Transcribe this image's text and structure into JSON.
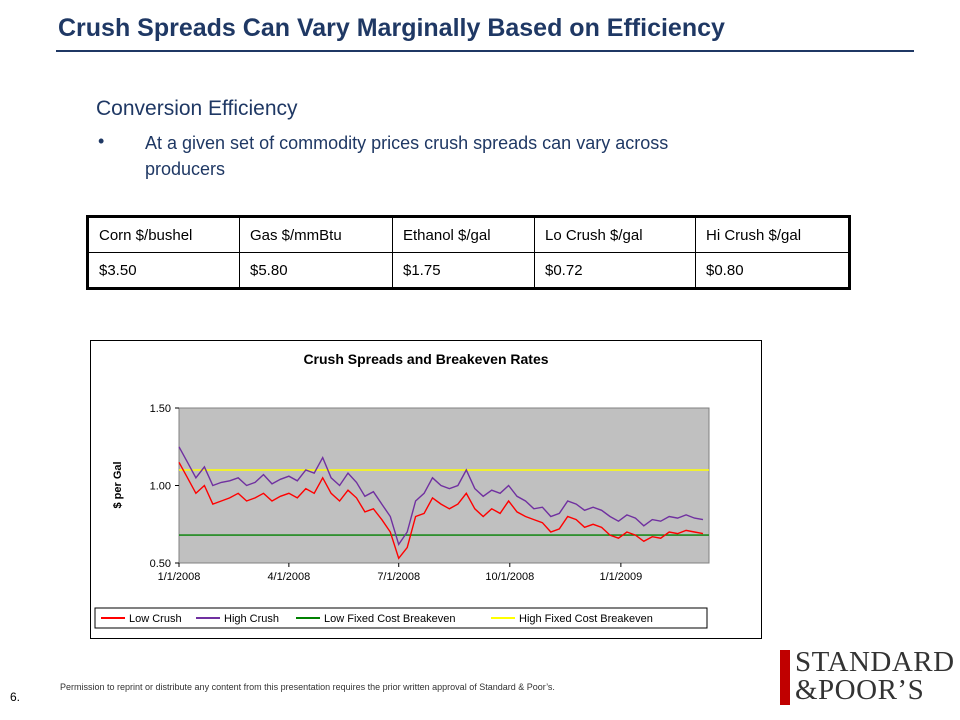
{
  "header": {
    "title": "Crush Spreads Can Vary Marginally Based on Efficiency"
  },
  "content": {
    "subheading": "Conversion Efficiency",
    "bullet": "At a given set of commodity prices crush spreads can vary across producers"
  },
  "price_table": {
    "headers": [
      "Corn $/bushel",
      "Gas $/mmBtu",
      "Ethanol $/gal",
      "Lo Crush $/gal",
      "Hi Crush $/gal"
    ],
    "row": [
      "$3.50",
      "$5.80",
      "$1.75",
      "$0.72",
      "$0.80"
    ]
  },
  "chart_data": {
    "type": "line",
    "title": "Crush Spreads and Breakeven Rates",
    "ylabel": "$ per Gal",
    "xlabel": "",
    "ylim": [
      0.5,
      1.5
    ],
    "yticks": [
      "0.50",
      "1.00",
      "1.50"
    ],
    "xticks": [
      "1/1/2008",
      "4/1/2008",
      "7/1/2008",
      "10/1/2008",
      "1/1/2009"
    ],
    "xrange": [
      "2008-01-01",
      "2009-03-15"
    ],
    "grid": false,
    "legend_position": "bottom",
    "series": [
      {
        "name": "Low Crush",
        "color": "#ff0000",
        "x": [
          "2008-01-01",
          "2008-01-08",
          "2008-01-15",
          "2008-01-22",
          "2008-01-29",
          "2008-02-05",
          "2008-02-12",
          "2008-02-19",
          "2008-02-26",
          "2008-03-04",
          "2008-03-11",
          "2008-03-18",
          "2008-03-25",
          "2008-04-01",
          "2008-04-08",
          "2008-04-15",
          "2008-04-22",
          "2008-04-29",
          "2008-05-06",
          "2008-05-13",
          "2008-05-20",
          "2008-05-27",
          "2008-06-03",
          "2008-06-10",
          "2008-06-17",
          "2008-06-24",
          "2008-07-01",
          "2008-07-08",
          "2008-07-15",
          "2008-07-22",
          "2008-07-29",
          "2008-08-05",
          "2008-08-12",
          "2008-08-19",
          "2008-08-26",
          "2008-09-02",
          "2008-09-09",
          "2008-09-16",
          "2008-09-23",
          "2008-09-30",
          "2008-10-07",
          "2008-10-14",
          "2008-10-21",
          "2008-10-28",
          "2008-11-04",
          "2008-11-11",
          "2008-11-18",
          "2008-11-25",
          "2008-12-02",
          "2008-12-09",
          "2008-12-16",
          "2008-12-23",
          "2008-12-30",
          "2009-01-06",
          "2009-01-13",
          "2009-01-20",
          "2009-01-27",
          "2009-02-03",
          "2009-02-10",
          "2009-02-17",
          "2009-02-24",
          "2009-03-03",
          "2009-03-10"
        ],
        "values": [
          1.15,
          1.05,
          0.95,
          1.0,
          0.88,
          0.9,
          0.92,
          0.95,
          0.9,
          0.92,
          0.95,
          0.9,
          0.93,
          0.95,
          0.92,
          0.98,
          0.95,
          1.05,
          0.95,
          0.9,
          0.97,
          0.92,
          0.83,
          0.85,
          0.78,
          0.7,
          0.53,
          0.6,
          0.8,
          0.82,
          0.92,
          0.88,
          0.85,
          0.88,
          0.95,
          0.85,
          0.8,
          0.85,
          0.82,
          0.9,
          0.83,
          0.8,
          0.78,
          0.76,
          0.7,
          0.72,
          0.8,
          0.78,
          0.73,
          0.75,
          0.73,
          0.68,
          0.66,
          0.7,
          0.68,
          0.64,
          0.67,
          0.66,
          0.7,
          0.69,
          0.71,
          0.7,
          0.69
        ]
      },
      {
        "name": "High Crush",
        "color": "#7030a0",
        "x": [
          "2008-01-01",
          "2008-01-08",
          "2008-01-15",
          "2008-01-22",
          "2008-01-29",
          "2008-02-05",
          "2008-02-12",
          "2008-02-19",
          "2008-02-26",
          "2008-03-04",
          "2008-03-11",
          "2008-03-18",
          "2008-03-25",
          "2008-04-01",
          "2008-04-08",
          "2008-04-15",
          "2008-04-22",
          "2008-04-29",
          "2008-05-06",
          "2008-05-13",
          "2008-05-20",
          "2008-05-27",
          "2008-06-03",
          "2008-06-10",
          "2008-06-17",
          "2008-06-24",
          "2008-07-01",
          "2008-07-08",
          "2008-07-15",
          "2008-07-22",
          "2008-07-29",
          "2008-08-05",
          "2008-08-12",
          "2008-08-19",
          "2008-08-26",
          "2008-09-02",
          "2008-09-09",
          "2008-09-16",
          "2008-09-23",
          "2008-09-30",
          "2008-10-07",
          "2008-10-14",
          "2008-10-21",
          "2008-10-28",
          "2008-11-04",
          "2008-11-11",
          "2008-11-18",
          "2008-11-25",
          "2008-12-02",
          "2008-12-09",
          "2008-12-16",
          "2008-12-23",
          "2008-12-30",
          "2009-01-06",
          "2009-01-13",
          "2009-01-20",
          "2009-01-27",
          "2009-02-03",
          "2009-02-10",
          "2009-02-17",
          "2009-02-24",
          "2009-03-03",
          "2009-03-10"
        ],
        "values": [
          1.25,
          1.15,
          1.05,
          1.12,
          1.0,
          1.02,
          1.03,
          1.05,
          1.0,
          1.02,
          1.07,
          1.01,
          1.04,
          1.06,
          1.03,
          1.1,
          1.08,
          1.18,
          1.05,
          1.0,
          1.08,
          1.02,
          0.93,
          0.96,
          0.88,
          0.8,
          0.62,
          0.7,
          0.9,
          0.95,
          1.05,
          1.0,
          0.98,
          1.0,
          1.1,
          0.98,
          0.93,
          0.97,
          0.95,
          1.0,
          0.93,
          0.9,
          0.85,
          0.86,
          0.8,
          0.82,
          0.9,
          0.88,
          0.84,
          0.86,
          0.84,
          0.8,
          0.77,
          0.81,
          0.79,
          0.74,
          0.78,
          0.77,
          0.8,
          0.79,
          0.81,
          0.79,
          0.78
        ]
      },
      {
        "name": "Low Fixed Cost Breakeven",
        "color": "#008000",
        "x": [
          "2008-01-01",
          "2009-03-15"
        ],
        "values": [
          0.68,
          0.68
        ]
      },
      {
        "name": "High Fixed Cost Breakeven",
        "color": "#ffff00",
        "x": [
          "2008-01-01",
          "2009-03-15"
        ],
        "values": [
          1.1,
          1.1
        ]
      }
    ]
  },
  "footer": {
    "permission": "Permission to reprint or distribute any content from this presentation requires the prior written approval of Standard & Poor’s.",
    "page": "6.",
    "logo_line1": "STANDARD",
    "logo_line2": "&POOR’S"
  }
}
